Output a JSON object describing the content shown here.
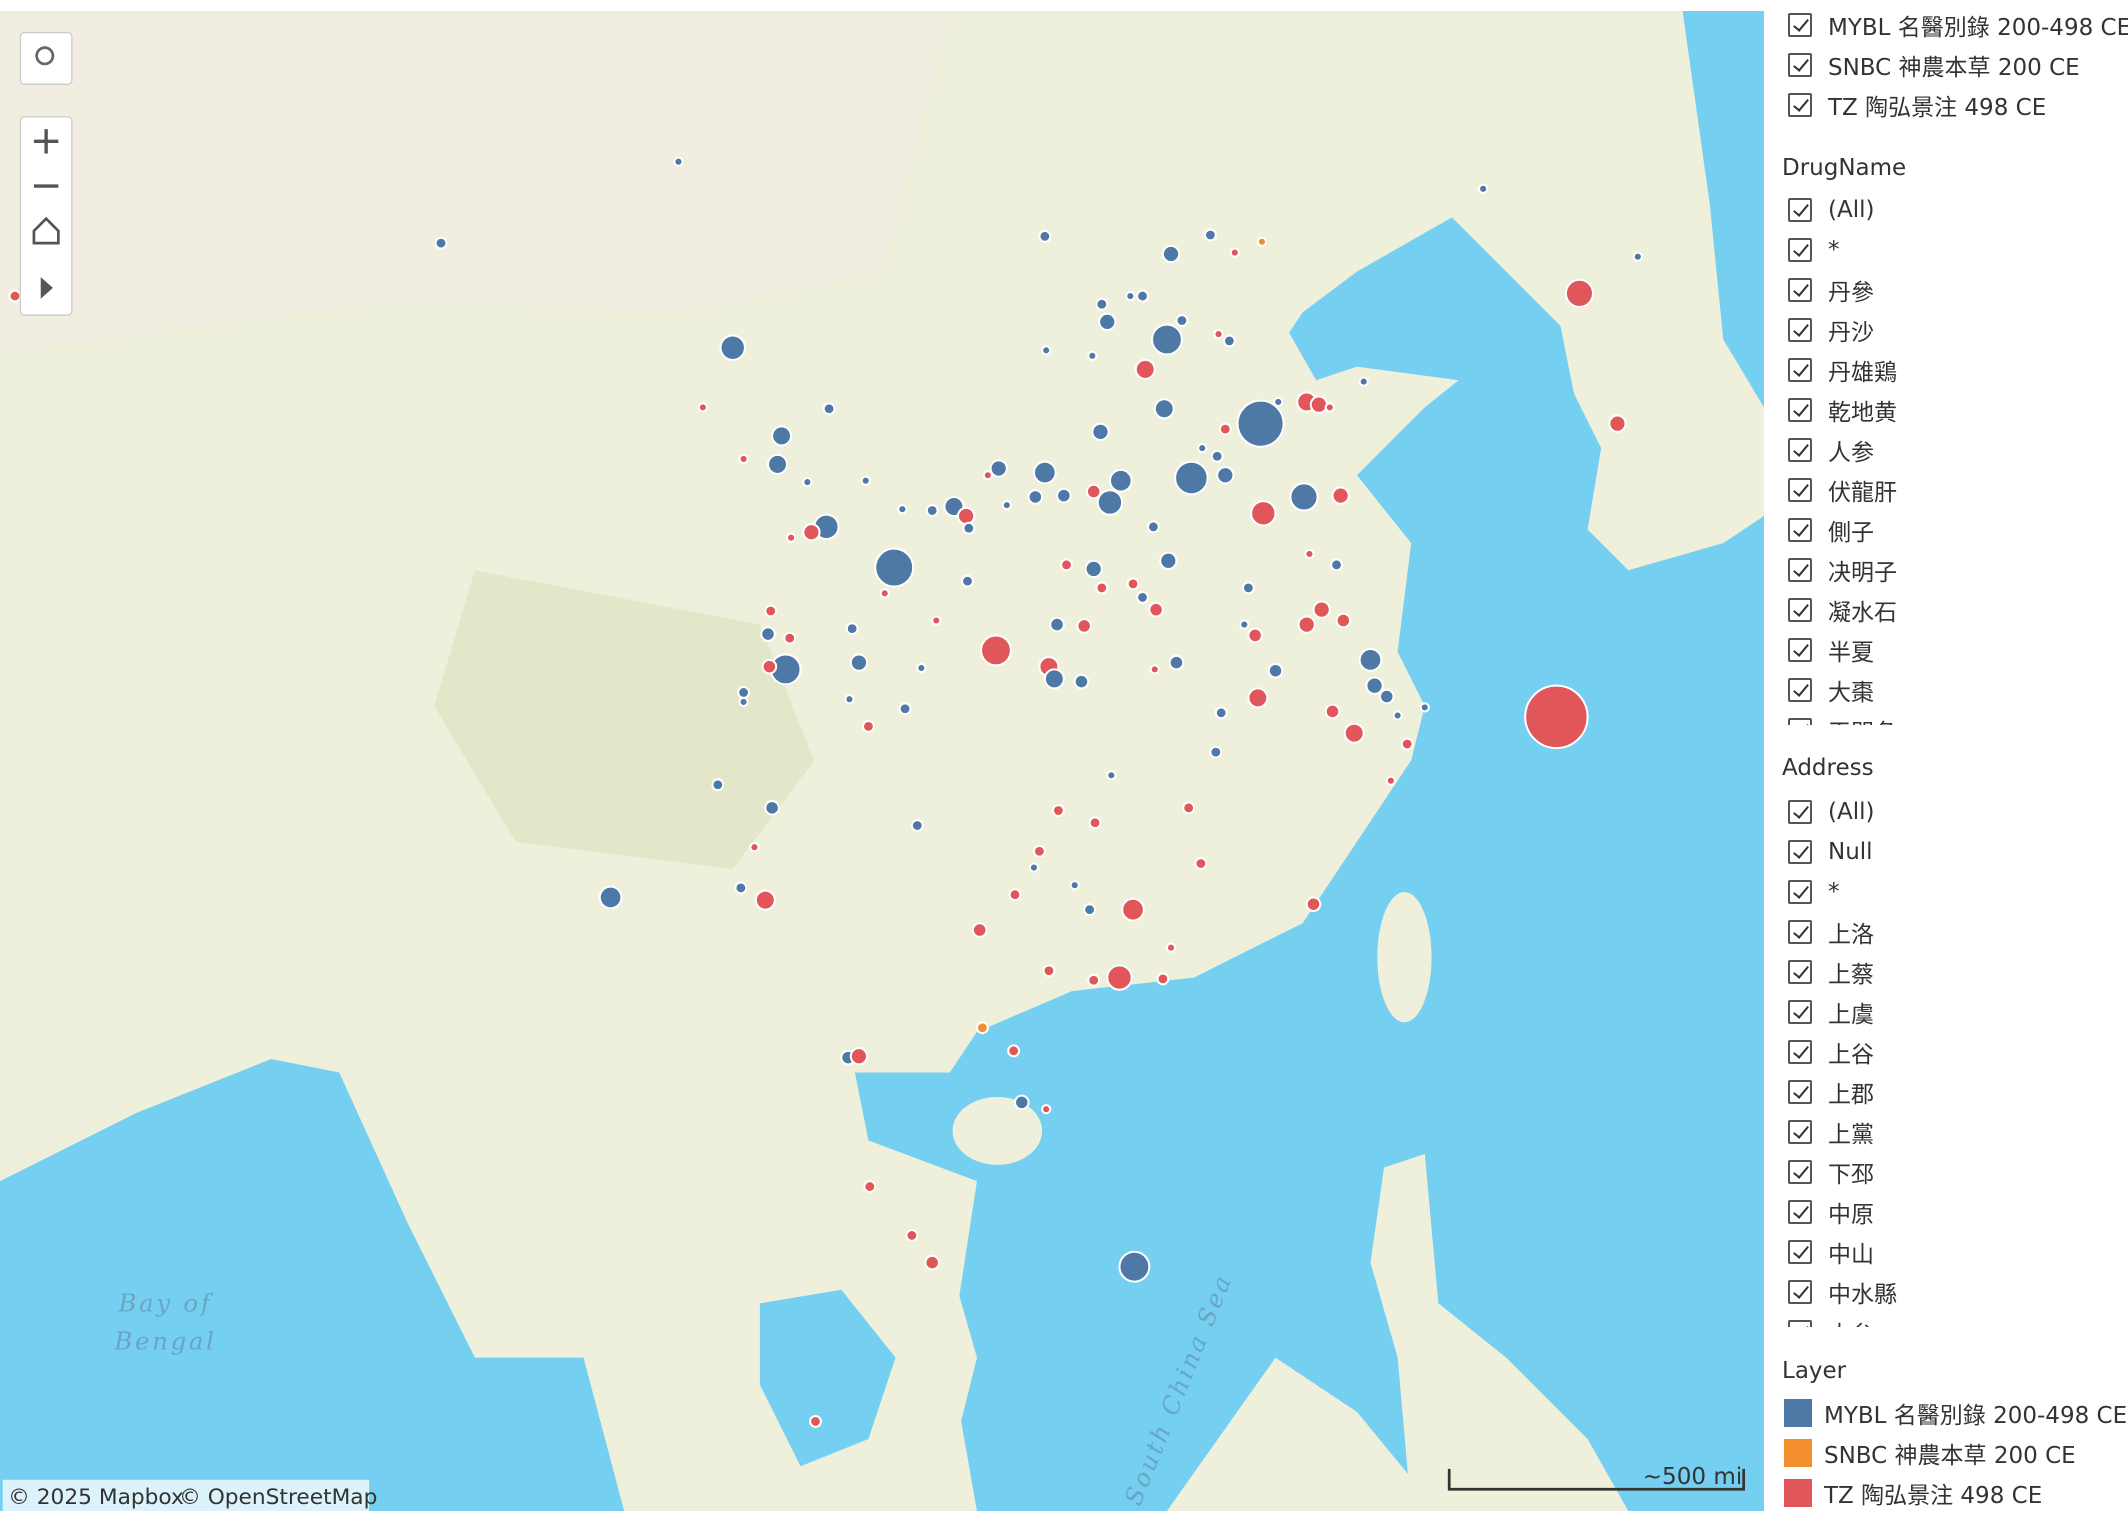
{
  "map": {
    "labels": {
      "bay": [
        "Bay of",
        "Bengal"
      ],
      "sea": "South China Sea"
    },
    "attribution": [
      "© 2025 Mapbox",
      "© OpenStreetMap"
    ],
    "scale_label": "~500 mi"
  },
  "filters": [
    {
      "items": [
        "MYBL 名醫別錄 200-498 CE",
        "SNBC 神農本草 200 CE",
        "TZ 陶弘景注 498 CE"
      ]
    },
    {
      "title": "DrugName",
      "items": [
        "(All)",
        "*",
        "丹參",
        "丹沙",
        "丹雄鶏",
        "乾地黄",
        "人参",
        "伏龍肝",
        "側子",
        "决明子",
        "凝水石",
        "半夏",
        "大棗",
        "天門冬"
      ]
    },
    {
      "title": "Address",
      "items": [
        "(All)",
        "Null",
        "*",
        "上洛",
        "上蔡",
        "上虞",
        "上谷",
        "上郡",
        "上黨",
        "下邳",
        "中原",
        "中山",
        "中水縣",
        "中牟"
      ]
    }
  ],
  "legend": {
    "title": "Layer",
    "items": [
      {
        "label": "MYBL 名醫別錄 200-498 CE",
        "color": "#4e79a7"
      },
      {
        "label": "SNBC 神農本草 200 CE",
        "color": "#f28e2b"
      },
      {
        "label": "TZ 陶弘景注 498 CE",
        "color": "#e15759"
      }
    ]
  }
}
